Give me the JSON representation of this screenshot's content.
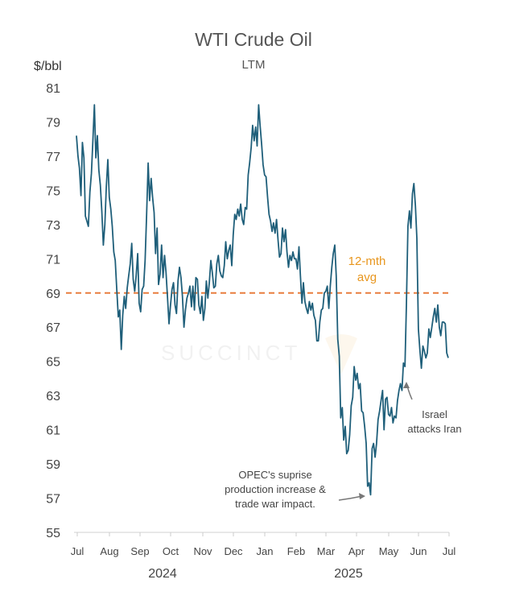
{
  "chart_data": {
    "type": "line",
    "title": "WTI Crude Oil",
    "subtitle": "LTM",
    "ylabel": "$/bbl",
    "ylim": [
      55,
      81
    ],
    "yticks": [
      55,
      57,
      59,
      61,
      63,
      65,
      67,
      69,
      71,
      73,
      75,
      77,
      79,
      81
    ],
    "xtick_labels": [
      "Jul",
      "Aug",
      "Sep",
      "Oct",
      "Nov",
      "Dec",
      "Jan",
      "Feb",
      "Mar",
      "Apr",
      "May",
      "Jun",
      "Jul"
    ],
    "year_labels": [
      "2024",
      "2025"
    ],
    "grid": false,
    "legend": "none",
    "watermark": "SUCCINCT",
    "colors": {
      "series": "#1F5F7A",
      "average": "#E87D3E",
      "average_label": "#E8961E",
      "annotation": "#777777"
    },
    "series": [
      {
        "values": [
          78.2,
          77.0,
          76.3,
          74.7,
          77.8,
          76.9,
          73.5,
          73.2,
          72.9,
          74.9,
          76.0,
          77.9,
          80.0,
          76.9,
          78.2,
          76.2,
          75.3,
          73.8,
          71.8,
          73.0,
          75.2,
          76.8,
          74.6,
          73.9,
          72.9,
          71.4,
          70.9,
          69.2,
          67.6,
          68.0,
          65.7,
          67.7,
          68.8,
          68.1,
          69.3,
          70.0,
          70.7,
          71.9,
          69.8,
          69.1,
          70.0,
          71.3,
          68.4,
          67.9,
          69.2,
          69.4,
          70.9,
          73.6,
          76.6,
          74.4,
          75.7,
          74.6,
          73.7,
          71.3,
          72.8,
          69.5,
          70.1,
          71.8,
          69.9,
          71.2,
          70.2,
          68.7,
          67.2,
          68.3,
          69.2,
          69.6,
          68.3,
          67.8,
          69.7,
          70.5,
          69.9,
          68.8,
          67.0,
          68.0,
          68.7,
          69.0,
          69.4,
          68.2,
          69.4,
          68.0,
          69.9,
          69.8,
          68.3,
          67.8,
          68.8,
          67.4,
          68.1,
          69.7,
          68.7,
          69.6,
          70.9,
          70.2,
          69.3,
          69.4,
          70.7,
          71.2,
          70.3,
          70.0,
          69.9,
          70.6,
          72.0,
          71.0,
          71.5,
          71.8,
          70.6,
          72.4,
          73.6,
          73.3,
          73.9,
          73.5,
          74.2,
          73.3,
          73.0,
          74.0,
          73.9,
          75.9,
          76.6,
          77.5,
          78.8,
          77.9,
          78.7,
          77.6,
          80.0,
          78.8,
          77.7,
          76.5,
          75.9,
          75.8,
          74.6,
          73.6,
          73.2,
          72.6,
          73.1,
          72.5,
          73.3,
          72.1,
          71.1,
          71.3,
          72.8,
          72.0,
          72.7,
          71.4,
          70.5,
          71.2,
          70.9,
          71.4,
          71.0,
          71.0,
          70.4,
          71.7,
          70.0,
          68.4,
          69.6,
          68.5,
          68.1,
          67.8,
          68.5,
          68.0,
          68.4,
          67.7,
          67.4,
          66.2,
          66.2,
          67.3,
          68.0,
          68.1,
          69.0,
          69.1,
          69.4,
          68.1,
          69.4,
          70.5,
          71.3,
          71.8,
          70.0,
          66.3,
          65.3,
          61.7,
          62.3,
          60.4,
          61.2,
          59.6,
          59.8,
          60.7,
          62.4,
          62.9,
          64.7,
          63.9,
          64.3,
          63.4,
          63.7,
          62.1,
          62.0,
          61.2,
          60.2,
          57.7,
          57.9,
          57.2,
          59.9,
          60.2,
          59.4,
          60.2,
          61.6,
          62.1,
          62.7,
          63.3,
          61.0,
          62.8,
          62.9,
          61.9,
          61.8,
          62.3,
          61.4,
          61.8,
          61.7,
          62.7,
          63.3,
          63.7,
          63.3,
          64.9,
          64.7,
          68.3,
          72.9,
          73.8,
          72.8,
          74.8,
          75.4,
          74.1,
          72.2,
          66.9,
          65.7,
          64.6,
          65.9,
          65.6,
          65.2,
          65.5,
          66.9,
          66.4,
          67.0,
          67.6,
          68.1,
          67.3,
          68.3,
          67.0,
          66.5,
          67.3,
          67.3,
          67.2,
          65.5,
          65.2
        ]
      }
    ],
    "average": {
      "value": 69.0,
      "label_line1": "12-mth",
      "label_line2": "avg"
    },
    "annotations": [
      {
        "lines": [
          "OPEC's suprise",
          "production increase &",
          "trade war impact."
        ]
      },
      {
        "lines": [
          "Israel",
          "attacks Iran"
        ]
      }
    ]
  }
}
